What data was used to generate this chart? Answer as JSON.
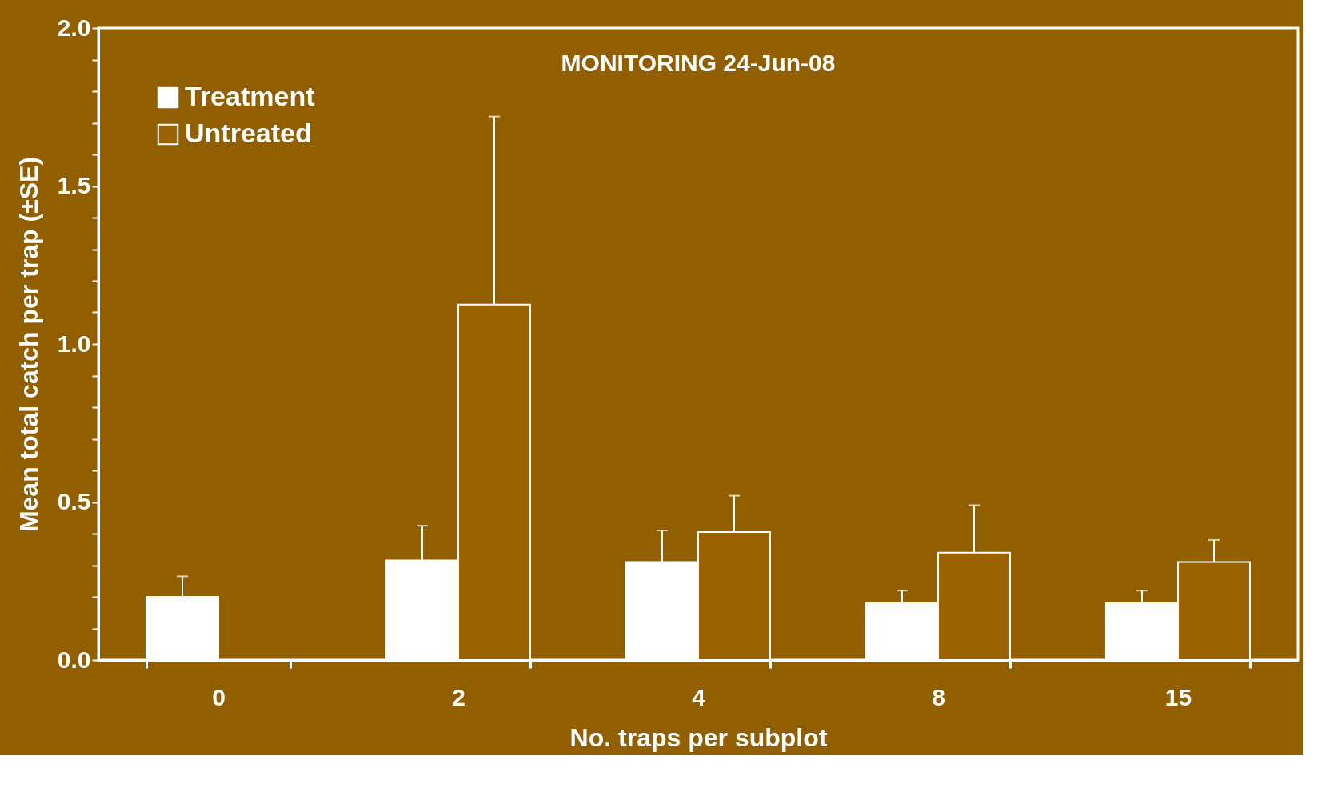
{
  "chart_data": {
    "type": "bar",
    "title": "MONITORING 24-Jun-08",
    "xlabel": "No. traps per subplot",
    "ylabel": "Mean total catch per trap (±SE)",
    "categories": [
      "0",
      "2",
      "4",
      "8",
      "15"
    ],
    "series": [
      {
        "name": "Treatment",
        "color": "#ffffff",
        "values": [
          0.2,
          0.315,
          0.31,
          0.18,
          0.18
        ],
        "errors": [
          [
            0.2,
            0.265
          ],
          [
            0.315,
            0.425
          ],
          [
            0.31,
            0.41
          ],
          [
            0.18,
            0.22
          ],
          [
            0.18,
            0.22
          ]
        ]
      },
      {
        "name": "Untreated",
        "color": "#9a6300",
        "values": [
          null,
          1.125,
          0.405,
          0.34,
          0.31
        ],
        "errors": [
          null,
          [
            1.125,
            1.72
          ],
          [
            0.405,
            0.52
          ],
          [
            0.34,
            0.49
          ],
          [
            0.31,
            0.38
          ]
        ]
      }
    ],
    "ylim": [
      0,
      2.0
    ],
    "yticks": [
      "0.0",
      {
        "value": 0.1,
        "label": null
      },
      {
        "value": 0.2,
        "label": null
      },
      {
        "value": 0.3,
        "label": null
      },
      {
        "value": 0.4,
        "label": null
      },
      {
        "value": 0.5,
        "label": "0.5"
      },
      {
        "value": 0.6,
        "label": null
      },
      {
        "value": 0.7,
        "label": null
      },
      {
        "value": 0.8,
        "label": null
      },
      {
        "value": 0.9,
        "label": null
      },
      {
        "value": 1.0,
        "label": "1.0"
      },
      {
        "value": 1.1,
        "label": null
      },
      {
        "value": 1.2,
        "label": null
      },
      {
        "value": 1.3,
        "label": null
      },
      {
        "value": 1.4,
        "label": null
      },
      {
        "value": 1.5,
        "label": "1.5"
      },
      {
        "value": 1.6,
        "label": null
      },
      {
        "value": 1.7,
        "label": null
      },
      {
        "value": 1.8,
        "label": null
      },
      {
        "value": 1.9,
        "label": null
      },
      {
        "value": 2.0,
        "label": "2.0"
      }
    ],
    "grid": false,
    "legend": "top left"
  }
}
